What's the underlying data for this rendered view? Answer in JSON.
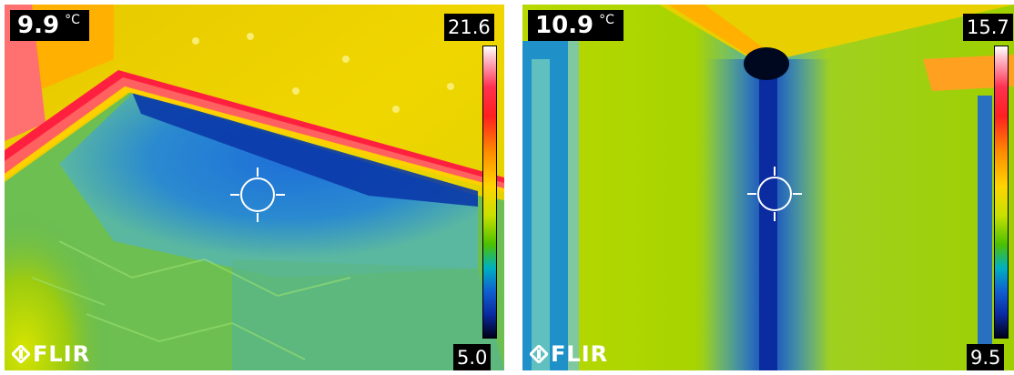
{
  "images": [
    {
      "spot_temperature": "9.9",
      "unit": "°C",
      "scale_max": "21.6",
      "scale_min": "5.0",
      "logo_text": "FLIR",
      "palette": "rainbow-hi"
    },
    {
      "spot_temperature": "10.9",
      "unit": "°C",
      "scale_max": "15.7",
      "scale_min": "9.5",
      "logo_text": "FLIR",
      "palette": "rainbow-hi"
    }
  ]
}
